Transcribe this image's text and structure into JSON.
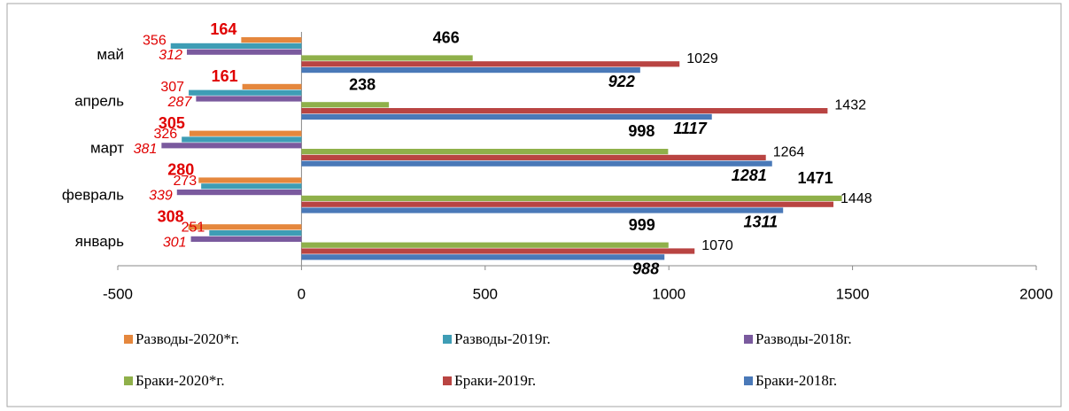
{
  "chart_data": {
    "type": "bar",
    "orientation": "horizontal",
    "categories": [
      "январь",
      "февраль",
      "март",
      "апрель",
      "май"
    ],
    "series": [
      {
        "name": "Разводы-2020*г.",
        "color": "#e5873d",
        "values": [
          -308,
          -280,
          -305,
          -161,
          -164
        ],
        "value_labels": [
          "308",
          "280",
          "305",
          "161",
          "164"
        ]
      },
      {
        "name": "Разводы-2019г.",
        "color": "#3e9db5",
        "values": [
          -251,
          -273,
          -326,
          -307,
          -356
        ],
        "value_labels": [
          "251",
          "273",
          "326",
          "307",
          "356"
        ]
      },
      {
        "name": "Разводы-2018г.",
        "color": "#7a5a9e",
        "values": [
          -301,
          -339,
          -381,
          -287,
          -312
        ],
        "value_labels": [
          "301",
          "339",
          "381",
          "287",
          "312"
        ]
      },
      {
        "name": "Браки-2020*г.",
        "color": "#8fb04a",
        "values": [
          999,
          1471,
          998,
          238,
          466
        ]
      },
      {
        "name": "Браки-2019г.",
        "color": "#b94442",
        "values": [
          1070,
          1448,
          1264,
          1432,
          1029
        ]
      },
      {
        "name": "Браки-2018г.",
        "color": "#4a79b8",
        "values": [
          988,
          1311,
          1281,
          1117,
          922
        ]
      }
    ],
    "xlim": [
      -500,
      2000
    ],
    "xticks": [
      -500,
      0,
      500,
      1000,
      1500,
      2000
    ],
    "legend": "bottom"
  }
}
